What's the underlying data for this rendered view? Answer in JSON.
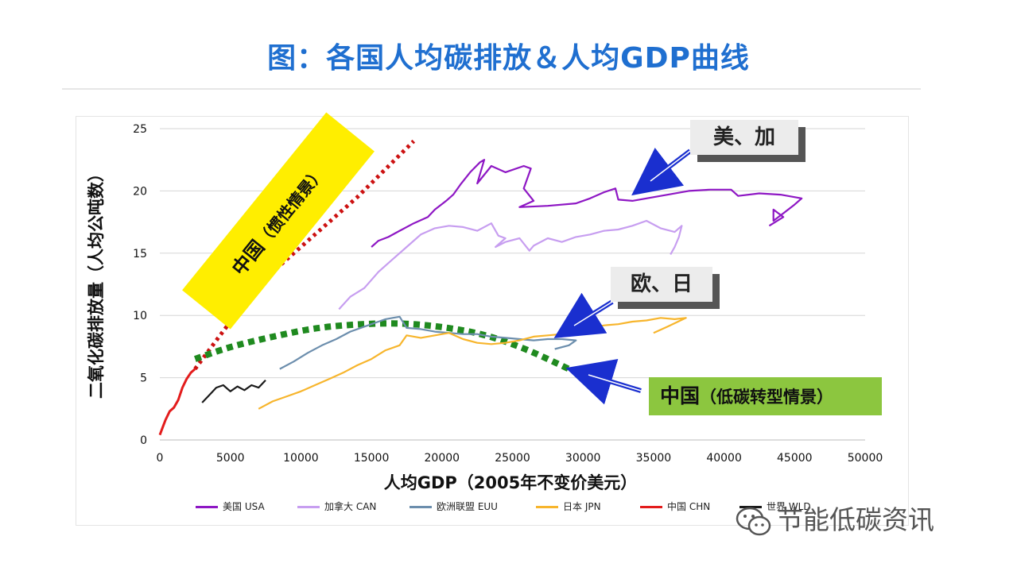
{
  "title": "图：各国人均碳排放＆人均GDP曲线",
  "colors": {
    "title": "#1f6fd0",
    "usa": "#8e17c4",
    "can": "#c79ef0",
    "euu": "#6c8ead",
    "jpn": "#f7b52c",
    "chn": "#e31c1c",
    "wld": "#1a1a1a",
    "green": "#1f8a1f",
    "red_dots": "#cc1111",
    "arrow": "#1a2fcf",
    "yellow_box": "#ffee00",
    "green_box": "#8cc63f"
  },
  "annotations": {
    "us_ca": "美、加",
    "eu_jp": "欧、日",
    "china_low_carbon_main": "中国",
    "china_low_carbon_sub": "（低碳转型情景）",
    "china_inertia_main": "中国",
    "china_inertia_sub": "（惯性情景）"
  },
  "watermark": {
    "text": "节能低碳资讯",
    "icon": "wechat-icon"
  },
  "chart_data": {
    "type": "line",
    "xlabel": "人均GDP（2005年不变价美元）",
    "ylabel": "二氧化碳排放量（人均公吨数）",
    "xlim": [
      0,
      50000
    ],
    "ylim": [
      0,
      25
    ],
    "xticks": [
      0,
      5000,
      10000,
      15000,
      20000,
      25000,
      30000,
      35000,
      40000,
      45000,
      50000
    ],
    "yticks": [
      0,
      5,
      10,
      15,
      20,
      25
    ],
    "grid": "horizontal",
    "legend_position": "bottom",
    "series": [
      {
        "name": "美国 USA",
        "color": "#8e17c4",
        "x": [
          15000,
          15500,
          16200,
          17000,
          18000,
          19000,
          19500,
          20300,
          20800,
          21300,
          22000,
          22700,
          23000,
          22500,
          23500,
          24500,
          25800,
          26300,
          25800,
          26500,
          25500,
          27500,
          29500,
          30500,
          31500,
          32300,
          32500,
          33500,
          35500,
          37500,
          39000,
          40500,
          41000,
          42500,
          44000,
          45500,
          45000,
          44200,
          43500,
          43500,
          44200,
          43200
        ],
        "y": [
          15.5,
          16,
          16.3,
          16.8,
          17.4,
          17.9,
          18.5,
          19.2,
          19.7,
          20.5,
          21.5,
          22.3,
          22.5,
          20.6,
          22,
          21.5,
          22,
          21.8,
          20.2,
          19.2,
          18.7,
          18.8,
          19,
          19.4,
          19.9,
          20.2,
          19.3,
          19.2,
          19.6,
          20,
          20.1,
          20.1,
          19.6,
          19.8,
          19.7,
          19.4,
          18.9,
          18.2,
          17.6,
          18.5,
          17.9,
          17.2
        ]
      },
      {
        "name": "加拿大 CAN",
        "color": "#c79ef0",
        "x": [
          12700,
          13500,
          14500,
          15500,
          16500,
          17500,
          18500,
          19500,
          20500,
          21500,
          22500,
          23500,
          24000,
          24500,
          23800,
          24500,
          25500,
          26200,
          26500,
          27500,
          28500,
          29500,
          30500,
          31500,
          32500,
          33500,
          34500,
          35500,
          36500,
          37000,
          36800,
          36500,
          36200
        ],
        "y": [
          10.5,
          11.5,
          12.2,
          13.5,
          14.5,
          15.5,
          16.5,
          17,
          17.2,
          17.1,
          16.8,
          17.4,
          16.4,
          16.2,
          15.5,
          15.9,
          16.2,
          15.2,
          15.6,
          16.2,
          15.9,
          16.3,
          16.5,
          16.8,
          16.9,
          17.2,
          17.6,
          17,
          16.7,
          17.2,
          16.3,
          15.5,
          14.9
        ]
      },
      {
        "name": "欧洲联盟 EUU",
        "color": "#6c8ead",
        "x": [
          8500,
          9500,
          10500,
          11500,
          12500,
          13500,
          14500,
          15500,
          16000,
          16500,
          17000,
          17500,
          18500,
          19500,
          20500,
          21500,
          22500,
          23500,
          24500,
          25500,
          26500,
          27500,
          28500,
          29500,
          29000,
          28000
        ],
        "y": [
          5.7,
          6.3,
          7,
          7.6,
          8.1,
          8.7,
          9.1,
          9.5,
          9.7,
          9.8,
          9.9,
          9,
          8.9,
          8.7,
          8.6,
          8.5,
          8.5,
          8.3,
          8.2,
          8.1,
          8,
          8.1,
          8.1,
          8,
          7.6,
          7.3
        ]
      },
      {
        "name": "日本 JPN",
        "color": "#f7b52c",
        "x": [
          7000,
          8000,
          9000,
          10000,
          11000,
          12000,
          13000,
          14000,
          15000,
          16000,
          17000,
          17500,
          18500,
          19500,
          20500,
          21500,
          22500,
          23500,
          24500,
          25500,
          26500,
          27500,
          28500,
          29500,
          30500,
          31500,
          32500,
          33500,
          34500,
          35500,
          36500,
          37300,
          36000,
          35000
        ],
        "y": [
          2.5,
          3.1,
          3.5,
          3.9,
          4.4,
          4.9,
          5.4,
          6,
          6.5,
          7.2,
          7.6,
          8.4,
          8.2,
          8.4,
          8.6,
          8.1,
          7.8,
          7.7,
          7.8,
          8,
          8.3,
          8.4,
          8.5,
          8.7,
          9,
          9.2,
          9.3,
          9.5,
          9.6,
          9.8,
          9.7,
          9.8,
          9.1,
          8.6
        ]
      },
      {
        "name": "中国 CHN",
        "color": "#e31c1c",
        "x": [
          0,
          200,
          400,
          700,
          1000,
          1300,
          1600,
          1900,
          2200,
          2500
        ],
        "y": [
          0.4,
          1,
          1.6,
          2.3,
          2.6,
          3.2,
          4.2,
          4.9,
          5.4,
          5.7
        ]
      },
      {
        "name": "世界 WLD",
        "color": "#1a1a1a",
        "x": [
          3000,
          3500,
          4000,
          4500,
          5000,
          5500,
          6000,
          6500,
          7000,
          7500
        ],
        "y": [
          3,
          3.6,
          4.2,
          4.4,
          3.9,
          4.3,
          4,
          4.4,
          4.2,
          4.8
        ]
      }
    ],
    "scenarios": [
      {
        "name": "中国（惯性情景）",
        "color": "#cc1111",
        "x": [
          2500,
          5000,
          8000,
          11000,
          14000,
          18000
        ],
        "y": [
          5.7,
          9.5,
          13.5,
          16.5,
          19.5,
          24
        ]
      },
      {
        "name": "中国（低碳转型情景）",
        "color": "#1f8a1f",
        "x": [
          2500,
          5000,
          8000,
          11000,
          14000,
          17000,
          20000,
          23000,
          26000,
          29000
        ],
        "y": [
          6.5,
          7.5,
          8.3,
          9,
          9.3,
          9.4,
          9.1,
          8.5,
          7.3,
          5.7
        ]
      }
    ]
  }
}
